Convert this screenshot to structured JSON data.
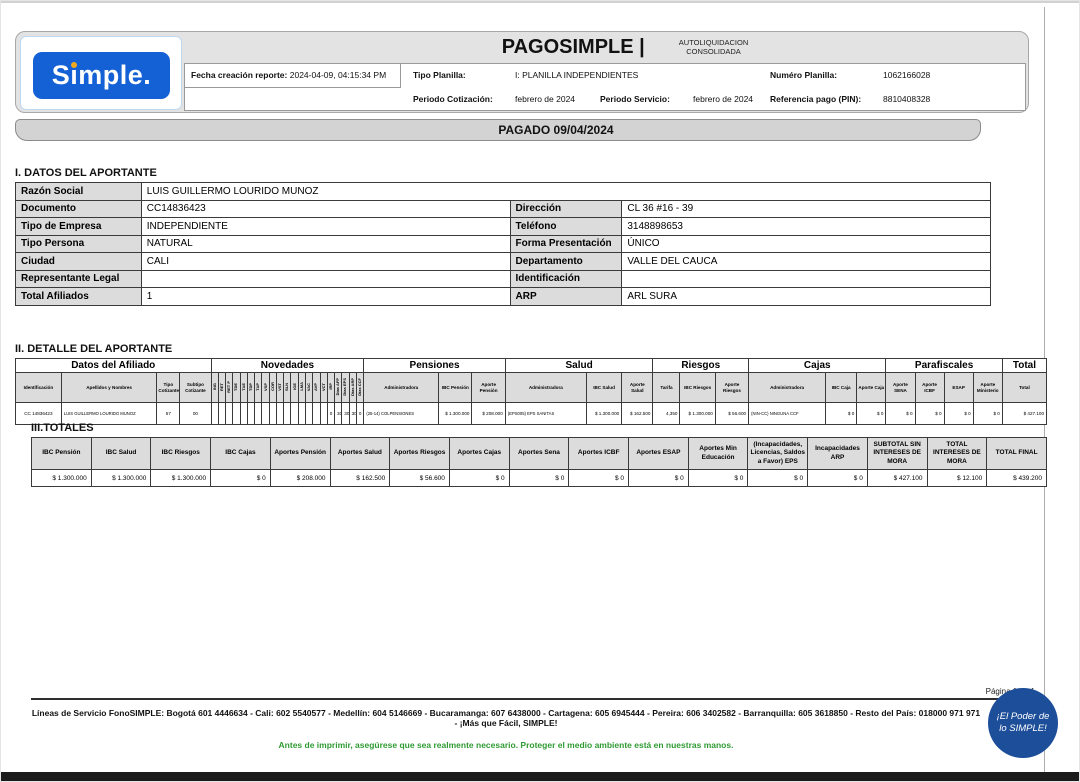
{
  "colors": {
    "logo_blue": "#1461d6",
    "logo_dot_orange": "#f2a81d",
    "badge_blue": "#1d4e99",
    "eco_green": "#2f9a33",
    "label_gray": "#dcdcdc",
    "header_gray": "#e3e3e3"
  },
  "header": {
    "logo_text": "Simple.",
    "title": "PAGOSIMPLE |",
    "subtitle_line1": "AUTOLIQUIDACION",
    "subtitle_line2": "CONSOLIDADA",
    "fecha_label": "Fecha creación reporte:",
    "fecha_value": "2024-04-09, 04:15:34 PM",
    "tipo_planilla_label": "Tipo Planilla:",
    "tipo_planilla_value": "I: PLANILLA INDEPENDIENTES",
    "numero_planilla_label": "Numéro Planilla:",
    "numero_planilla_value": "1062166028",
    "periodo_cotizacion_label": "Periodo Cotización:",
    "periodo_cotizacion_value": "febrero de 2024",
    "periodo_servicio_label": "Periodo Servicio:",
    "periodo_servicio_value": "febrero de 2024",
    "referencia_label": "Referencia pago (PIN):",
    "referencia_value": "8810408328"
  },
  "status_bar": "PAGADO 09/04/2024",
  "section1": {
    "title": "I. DATOS DEL APORTANTE",
    "rows": [
      {
        "l1": "Razón Social",
        "v1": "LUIS GUILLERMO LOURIDO MUNOZ",
        "span": true
      },
      {
        "l1": "Documento",
        "v1": "CC14836423",
        "l2": "Dirección",
        "v2": "CL 36 #16 - 39"
      },
      {
        "l1": "Tipo de Empresa",
        "v1": "INDEPENDIENTE",
        "l2": "Teléfono",
        "v2": "3148898653"
      },
      {
        "l1": "Tipo Persona",
        "v1": "NATURAL",
        "l2": "Forma Presentación",
        "v2": "ÚNICO"
      },
      {
        "l1": "Ciudad",
        "v1": "CALI",
        "l2": "Departamento",
        "v2": "VALLE DEL CAUCA"
      },
      {
        "l1": "Representante Legal",
        "v1": "",
        "l2": "Identificación",
        "v2": ""
      },
      {
        "l1": "Total Afiliados",
        "v1": "1",
        "l2": "ARP",
        "v2": "ARL SURA"
      }
    ]
  },
  "detalle": {
    "title": "II. DETALLE DEL APORTANTE",
    "groups": [
      "Datos del Afiliado",
      "Novedades",
      "Pensiones",
      "Salud",
      "Riesgos",
      "Cajas",
      "Parafiscales",
      "Total"
    ],
    "afiliado_headers": [
      "Identificación",
      "Apellidos y Nombres",
      "Tipo Cotizante",
      "Subtipo Cotizante"
    ],
    "novedades_headers": [
      "ING",
      "RET",
      "RET P",
      "TDE",
      "TAE",
      "TDP",
      "TAP",
      "VSP",
      "COR",
      "VST",
      "SLN",
      "IGE",
      "LMA",
      "VAC",
      "AVP",
      "VCT",
      "IRP",
      "Días AFP",
      "Días EPS",
      "Días ARP",
      "Días CCF"
    ],
    "pensiones_headers": [
      "Administradora",
      "IBC Pensión",
      "Aporte Pensión"
    ],
    "salud_headers": [
      "Administradora",
      "IBC Salud",
      "Aporte Salud"
    ],
    "riesgos_headers": [
      "Tarifa",
      "IBC Riesgos",
      "Aporte Riesgos"
    ],
    "cajas_headers": [
      "Administradora",
      "IBC Caja",
      "Aporte Caja"
    ],
    "parafiscales_headers": [
      "Aporte SENA",
      "Aporte ICBF",
      "ESAP",
      "Aporte Ministerio"
    ],
    "total_header": "Total",
    "row": {
      "identificacion": "CC 14836423",
      "nombre": "LUIS GUILLERMO LOURIDO MUNOZ",
      "tipo_cotizante": "57",
      "subtipo_cotizante": "00",
      "novedades": [
        "",
        "",
        "",
        "",
        "",
        "",
        "",
        "",
        "",
        "",
        "",
        "",
        "",
        "",
        "",
        "",
        "0",
        "30",
        "30",
        "30",
        "0"
      ],
      "pension_admin": "(25-14) COLPENSIONES",
      "ibc_pension": "$ 1.300.000",
      "aporte_pension": "$ 208.000",
      "salud_admin": "(EPS005) EPS SANITAS",
      "ibc_salud": "$ 1.300.000",
      "aporte_salud": "$ 162.500",
      "tarifa": "4,350",
      "ibc_riesgos": "$ 1.300.000",
      "aporte_riesgos": "$ 56.600",
      "caja_admin": "(NIN-CC) NINGUNA CCF",
      "ibc_caja": "$ 0",
      "aporte_caja": "$ 0",
      "aporte_sena": "$ 0",
      "aporte_icbf": "$ 0",
      "esap": "$ 0",
      "aporte_ministerio": "$ 0",
      "total": "$ 427.100"
    }
  },
  "totales": {
    "title": "III.TOTALES",
    "columns": [
      {
        "h": "IBC Pensión",
        "v": "$ 1.300.000"
      },
      {
        "h": "IBC Salud",
        "v": "$ 1.300.000"
      },
      {
        "h": "IBC Riesgos",
        "v": "$ 1.300.000"
      },
      {
        "h": "IBC Cajas",
        "v": "$ 0"
      },
      {
        "h": "Aportes Pensión",
        "v": "$ 208.000"
      },
      {
        "h": "Aportes Salud",
        "v": "$ 162.500"
      },
      {
        "h": "Aportes Riesgos",
        "v": "$ 56.600"
      },
      {
        "h": "Aportes Cajas",
        "v": "$ 0"
      },
      {
        "h": "Aportes Sena",
        "v": "$ 0"
      },
      {
        "h": "Aportes ICBF",
        "v": "$ 0"
      },
      {
        "h": "Aportes ESAP",
        "v": "$ 0"
      },
      {
        "h": "Aportes Min Educación",
        "v": "$ 0"
      },
      {
        "h": "(Incapacidades, Licencias, Saldos a Favor) EPS",
        "v": "$ 0"
      },
      {
        "h": "Incapacidades ARP",
        "v": "$ 0"
      },
      {
        "h": "SUBTOTAL SIN INTERESES DE MORA",
        "v": "$ 427.100"
      },
      {
        "h": "TOTAL INTERESES DE MORA",
        "v": "$ 12.100"
      },
      {
        "h": "TOTAL FINAL",
        "v": "$ 439.200"
      }
    ]
  },
  "footer": {
    "page": "Página 1 de 1",
    "service_lines": "Líneas de Servicio FonoSIMPLE: Bogotá 601 4446634 - Cali: 602 5540577 - Medellín: 604 5146669 - Bucaramanga: 607 6438000 - Cartagena: 605 6945444 - Pereira: 606 3402582 - Barranquilla: 605 3618850 - Resto del País: 018000 971 971 - ¡Más que Fácil, SIMPLE!",
    "eco_message": "Antes de imprimir, asegúrese que sea realmente necesario. Proteger el medio ambiente está en nuestras manos.",
    "badge": "¡El Poder de lo SIMPLE!"
  }
}
